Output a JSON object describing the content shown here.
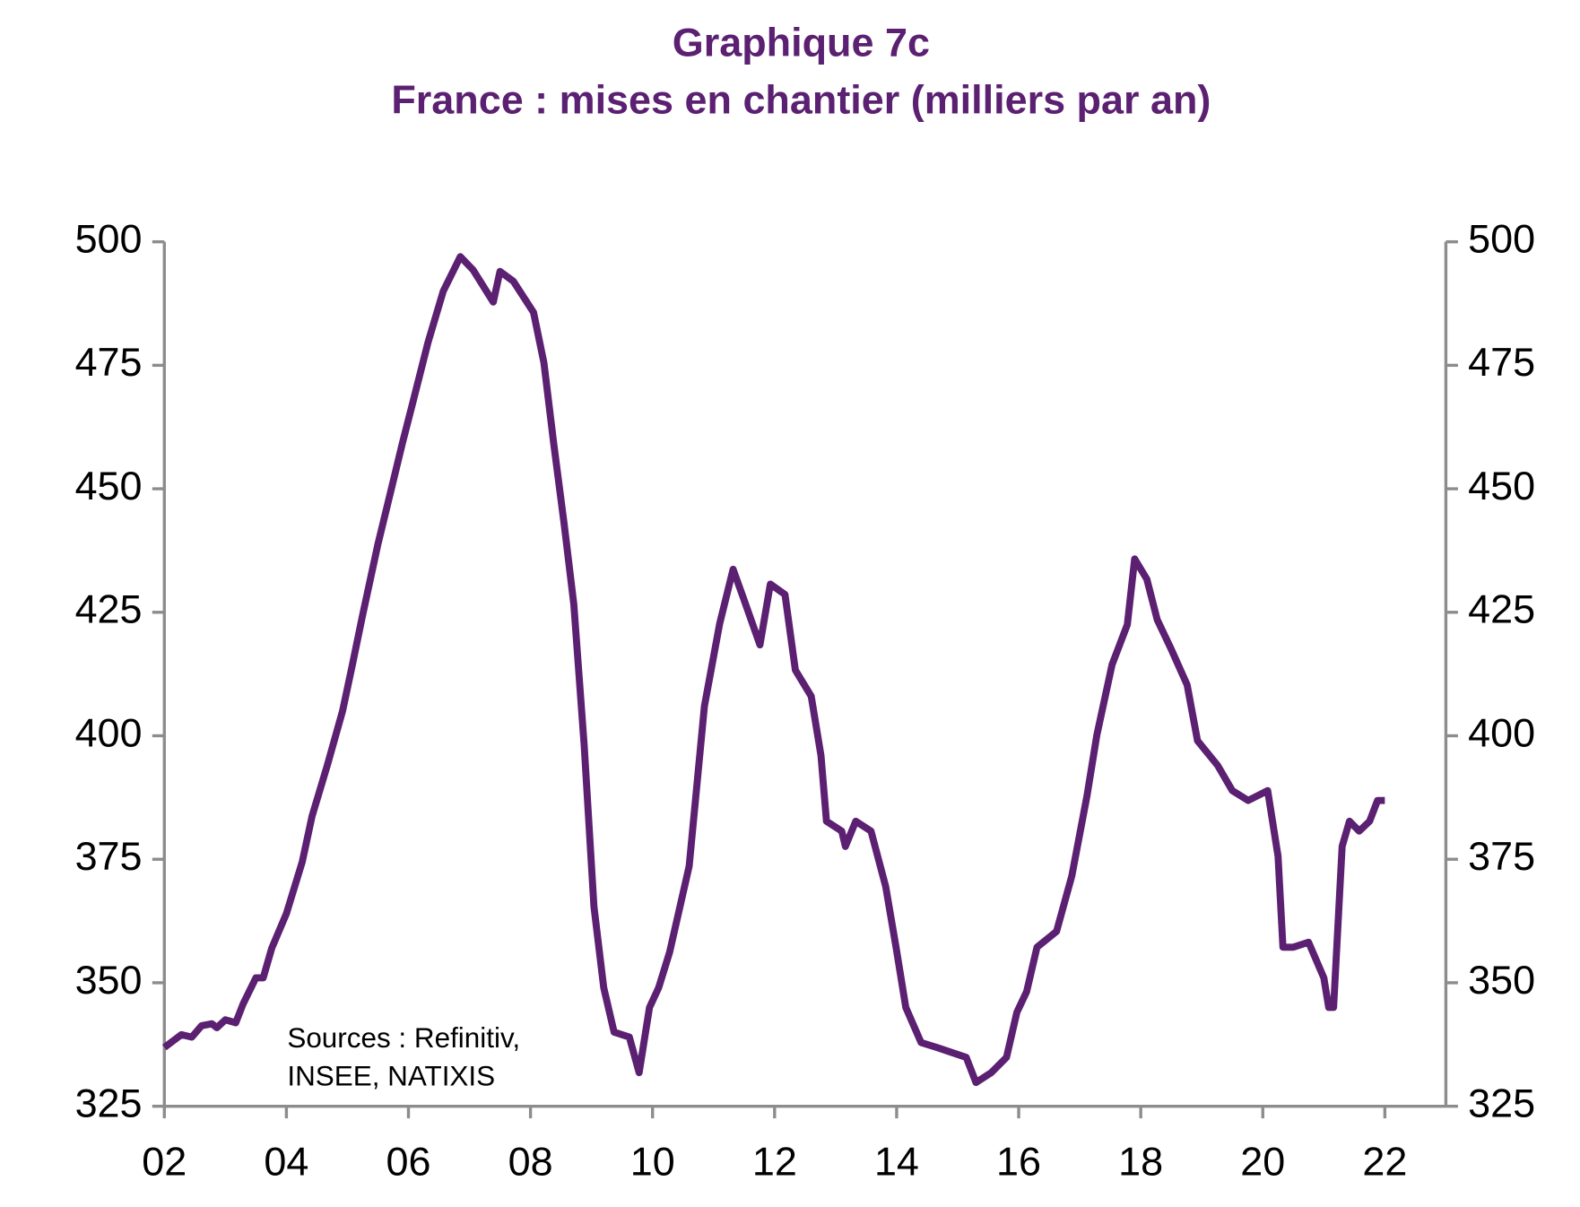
{
  "chart_data": {
    "type": "line",
    "title": "Graphique 7c",
    "subtitle": "France : mises en chantier (milliers par an)",
    "annotation": [
      "Sources :  Refinitiv,",
      "INSEE, NATIXIS"
    ],
    "x": [
      2002.0,
      2002.28,
      2002.45,
      2002.61,
      2002.78,
      2002.86,
      2003.0,
      2003.17,
      2003.29,
      2003.5,
      2003.62,
      2003.76,
      2004.0,
      2004.26,
      2004.42,
      2004.67,
      2004.92,
      2005.08,
      2005.25,
      2005.5,
      2005.74,
      2005.9,
      2006.07,
      2006.32,
      2006.57,
      2006.73,
      2006.85,
      2007.06,
      2007.39,
      2007.5,
      2007.72,
      2008.05,
      2008.22,
      2008.38,
      2008.55,
      2008.71,
      2008.88,
      2009.04,
      2009.2,
      2009.37,
      2009.62,
      2009.78,
      2009.95,
      2010.1,
      2010.28,
      2010.6,
      2010.85,
      2011.1,
      2011.32,
      2011.5,
      2011.76,
      2011.93,
      2012.17,
      2012.34,
      2012.6,
      2012.76,
      2012.85,
      2013.1,
      2013.16,
      2013.33,
      2013.58,
      2013.82,
      2013.99,
      2014.15,
      2014.4,
      2014.66,
      2014.9,
      2015.14,
      2015.3,
      2015.55,
      2015.8,
      2015.97,
      2016.13,
      2016.3,
      2016.62,
      2016.87,
      2017.12,
      2017.28,
      2017.53,
      2017.78,
      2017.9,
      2018.1,
      2018.27,
      2018.5,
      2018.76,
      2018.93,
      2019.26,
      2019.5,
      2019.76,
      2020.08,
      2020.25,
      2020.33,
      2020.5,
      2020.75,
      2021.0,
      2021.08,
      2021.16,
      2021.3,
      2021.42,
      2021.58,
      2021.75,
      2021.88,
      2022.0
    ],
    "series": [
      {
        "name": "Mises en chantier",
        "color": "#5b2071",
        "values": [
          336.9,
          339.5,
          339,
          341.3,
          341.7,
          340.9,
          342.5,
          341.9,
          345.7,
          351,
          351,
          357,
          364,
          374.5,
          383.7,
          394,
          405,
          414.3,
          424.5,
          438.8,
          451,
          459.2,
          467.4,
          479.6,
          490,
          494,
          497,
          494.3,
          487.8,
          494,
          492,
          485.7,
          475.5,
          459.2,
          443,
          426.6,
          398,
          365.4,
          349,
          340,
          339,
          331.8,
          345,
          349,
          356.2,
          373.6,
          406,
          422.7,
          433.7,
          427.5,
          418.4,
          430.7,
          428.6,
          413.3,
          408,
          396,
          382.7,
          380.7,
          377.6,
          382.7,
          380.7,
          369.5,
          357.2,
          345,
          337.9,
          336.9,
          335.9,
          334.9,
          329.8,
          331.8,
          334.9,
          344,
          348.2,
          357.2,
          360.4,
          371.6,
          387.9,
          400.1,
          414.4,
          422.5,
          435.8,
          431.7,
          423.5,
          417.5,
          410.3,
          399,
          394,
          388.9,
          386.9,
          388.9,
          375.6,
          357.2,
          357.2,
          358.2,
          351,
          345,
          345,
          377.6,
          382.7,
          380.7,
          382.7,
          386.9,
          386.9
        ]
      }
    ],
    "xlim": [
      2002,
      2023
    ],
    "xticks": [
      {
        "value": 2002,
        "label": "02"
      },
      {
        "value": 2004,
        "label": "04"
      },
      {
        "value": 2006,
        "label": "06"
      },
      {
        "value": 2008,
        "label": "08"
      },
      {
        "value": 2010,
        "label": "10"
      },
      {
        "value": 2012,
        "label": "12"
      },
      {
        "value": 2014,
        "label": "14"
      },
      {
        "value": 2016,
        "label": "16"
      },
      {
        "value": 2018,
        "label": "18"
      },
      {
        "value": 2020,
        "label": "20"
      },
      {
        "value": 2022,
        "label": "22"
      }
    ],
    "ylim": [
      325,
      500
    ],
    "yticks": [
      325,
      350,
      375,
      400,
      425,
      450,
      475,
      500
    ],
    "grid": false
  }
}
